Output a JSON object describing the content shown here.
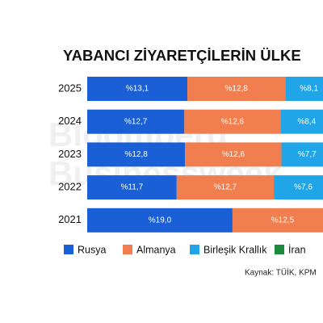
{
  "chart_data": {
    "type": "stacked-bar-horizontal",
    "title": "YABANCI ZİYARETÇİLERİN ÜLKE",
    "watermark": [
      "Bloomberg",
      "Businessweek"
    ],
    "source": "Kaynak: TÜİK, KPM",
    "categories": [
      "2025",
      "2024",
      "2023",
      "2022",
      "2021"
    ],
    "series": [
      {
        "name": "Rusya",
        "color": "#1a5fd6",
        "values": [
          13.1,
          12.7,
          12.8,
          11.7,
          19.0
        ],
        "value_labels": [
          "%13,1",
          "%12,7",
          "%12,8",
          "%11,7",
          "%19,0"
        ]
      },
      {
        "name": "Almanya",
        "color": "#f07e4f",
        "values": [
          12.8,
          12.6,
          12.6,
          12.7,
          12.5
        ],
        "value_labels": [
          "%12,8",
          "%12,6",
          "%12,6",
          "%12,7",
          "%12,5"
        ]
      },
      {
        "name": "Birleşik Krallık",
        "color": "#1fa5e8",
        "values": [
          8.1,
          8.4,
          7.7,
          7.6,
          null
        ],
        "value_labels": [
          "%8,1",
          "%8,4",
          "%7,7",
          "%7,6",
          null
        ]
      },
      {
        "name": "İran",
        "color": "#1b8a3c",
        "values": [
          null,
          null,
          null,
          null,
          null
        ]
      }
    ]
  }
}
